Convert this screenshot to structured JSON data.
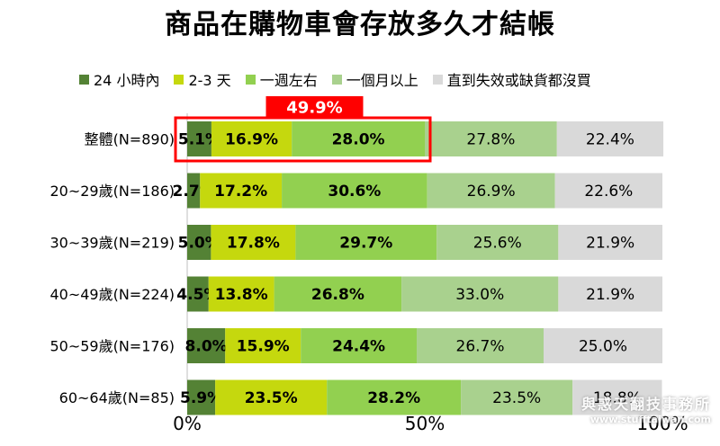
{
  "chart_data": {
    "type": "bar",
    "orientation": "horizontal-stacked-100",
    "title": "商品在購物車會存放多久才結帳",
    "categories": [
      "整體(N=890)",
      "20~29歲(N=186)",
      "30~39歲(N=219)",
      "40~49歲(N=224)",
      "50~59歲(N=176)",
      "60~64歲(N=85)"
    ],
    "series": [
      {
        "name": "24 小時內",
        "color": "#548235",
        "values": [
          5.1,
          2.7,
          5.0,
          4.5,
          8.0,
          5.9
        ],
        "labels": [
          "5.1%",
          "2.7%",
          "5.0%",
          "4.5%",
          "8.0%",
          "5.9%"
        ]
      },
      {
        "name": "2-3 天",
        "color": "#c5d80e",
        "values": [
          16.9,
          17.2,
          17.8,
          13.8,
          15.9,
          23.5
        ],
        "labels": [
          "16.9%",
          "17.2%",
          "17.8%",
          "13.8%",
          "15.9%",
          "23.5%"
        ]
      },
      {
        "name": "一週左右",
        "color": "#92d050",
        "values": [
          28.0,
          30.6,
          29.7,
          26.8,
          24.4,
          28.2
        ],
        "labels": [
          "28.0%",
          "30.6%",
          "29.7%",
          "26.8%",
          "24.4%",
          "28.2%"
        ]
      },
      {
        "name": "一個月以上",
        "color": "#a9d18e",
        "values": [
          27.8,
          26.9,
          25.6,
          33.0,
          26.7,
          23.5
        ],
        "labels": [
          "27.8%",
          "26.9%",
          "25.6%",
          "33.0%",
          "26.7%",
          "23.5%"
        ]
      },
      {
        "name": "直到失效或缺貨都沒買",
        "color": "#d9d9d9",
        "values": [
          22.4,
          22.6,
          21.9,
          21.9,
          25.0,
          18.8
        ],
        "labels": [
          "22.4%",
          "22.6%",
          "21.9%",
          "21.9%",
          "25.0%",
          "18.8%"
        ]
      }
    ],
    "xlim": [
      0,
      100
    ],
    "xticks": [
      "0%",
      "50%",
      "100%"
    ],
    "xtick_values": [
      0,
      50,
      100
    ],
    "legend_position": "top",
    "callout": {
      "label": "49.9%",
      "category_index": 0,
      "color": "#ff0000"
    }
  },
  "watermark": {
    "name": "與惑天翻技事務所",
    "url": "www.stufftaiwan.com"
  }
}
